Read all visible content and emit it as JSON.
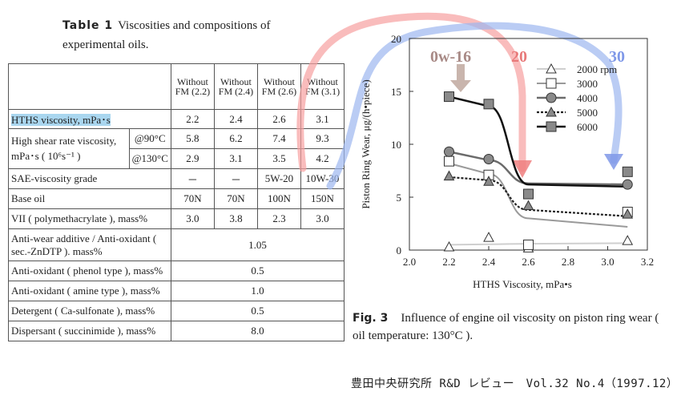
{
  "table": {
    "label": "Table 1",
    "caption": "Viscosities and compositions of experimental oils.",
    "header": [
      "Without FM (2.2)",
      "Without FM (2.4)",
      "Without FM (2.6)",
      "Without FM (3.1)"
    ],
    "hths": {
      "label": "HTHS viscosity, mPa･s",
      "values": [
        "2.2",
        "2.4",
        "2.6",
        "3.1"
      ]
    },
    "hsr": {
      "label": "High shear rate viscosity, mPa･s ( 10⁶s⁻¹ )",
      "sub90": "@90°C",
      "values90": [
        "5.8",
        "6.2",
        "7.4",
        "9.3"
      ],
      "sub130": "@130°C",
      "values130": [
        "2.9",
        "3.1",
        "3.5",
        "4.2"
      ]
    },
    "sae": {
      "label": "SAE-viscosity grade",
      "values": [
        "－",
        "－",
        "5W-20",
        "10W-30"
      ]
    },
    "base": {
      "label": "Base oil",
      "values": [
        "70N",
        "70N",
        "100N",
        "150N"
      ]
    },
    "vii": {
      "label": "VII ( polymethacrylate ), mass%",
      "values": [
        "3.0",
        "3.8",
        "2.3",
        "3.0"
      ]
    },
    "common": [
      {
        "label": "Anti-wear additive / Anti-oxidant ( sec.-ZnDTP ). mass%",
        "value": "1.05"
      },
      {
        "label": "Anti-oxidant ( phenol type ), mass%",
        "value": "0.5"
      },
      {
        "label": "Anti-oxidant ( amine type ), mass%",
        "value": "1.0"
      },
      {
        "label": "Detergent ( Ca-sulfonate ), mass%",
        "value": "0.5"
      },
      {
        "label": "Dispersant ( succinimide ), mass%",
        "value": "8.0"
      }
    ]
  },
  "chart_data": {
    "type": "scatter",
    "xlabel": "HTHS Viscosity, mPa•s",
    "ylabel": "Piston Ring Wear, μg/(h•piece)",
    "xlim": [
      2.0,
      3.2
    ],
    "ylim": [
      0,
      20
    ],
    "xticks": [
      "2.0",
      "2.2",
      "2.4",
      "2.6",
      "2.8",
      "3.0",
      "3.2"
    ],
    "yticks": [
      "0",
      "5",
      "10",
      "15",
      "20"
    ],
    "x": [
      2.2,
      2.4,
      2.6,
      3.1
    ],
    "legend_position": "top-right",
    "series": [
      {
        "name": "2000 rpm",
        "marker": "triangle-open",
        "values": [
          0.3,
          1.2,
          0.2,
          0.9
        ],
        "fit": [
          0.5,
          0.55,
          0.6,
          0.65
        ]
      },
      {
        "name": "3000",
        "marker": "square-open",
        "values": [
          8.4,
          7.1,
          0.5,
          3.6
        ],
        "fit": [
          8.2,
          7.2,
          3.0,
          2.2
        ]
      },
      {
        "name": "4000",
        "marker": "circle-gray",
        "values": [
          9.3,
          8.6,
          5.3,
          6.2
        ],
        "fit": [
          9.3,
          8.5,
          6.3,
          6.2
        ]
      },
      {
        "name": "5000",
        "marker": "triangle-gray",
        "values": [
          7.0,
          6.5,
          4.2,
          3.4
        ],
        "fit": [
          6.9,
          6.6,
          3.8,
          3.2
        ]
      },
      {
        "name": "6000",
        "marker": "square-gray",
        "values": [
          14.5,
          13.8,
          5.3,
          7.4
        ],
        "fit": [
          14.5,
          13.6,
          6.2,
          6.0
        ]
      }
    ],
    "annotations": [
      {
        "text": "0w-16",
        "color": "#a88a86"
      },
      {
        "text": "20",
        "color": "#e87a7a"
      },
      {
        "text": "30",
        "color": "#7f98e8"
      }
    ]
  },
  "figure": {
    "label": "Fig. 3",
    "caption": "Influence of engine oil viscosity on piston ring wear ( oil temperature: 130°C )."
  },
  "footer": "豊田中央研究所 R&D レビュー　Vol.32 No.4（1997.12）"
}
